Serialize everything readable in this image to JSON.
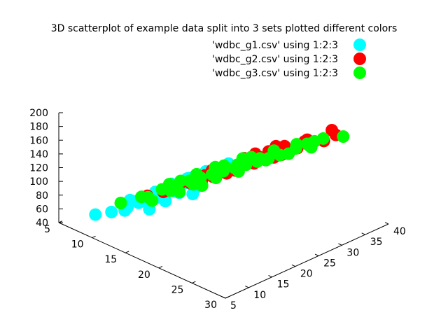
{
  "chart_data": {
    "type": "scatter",
    "title": "3D scatterplot of example data split into 3 sets plotted different colors",
    "xlabel": "",
    "ylabel": "",
    "zlabel": "",
    "xlim": [
      5,
      30
    ],
    "ylim": [
      5,
      40
    ],
    "zlim": [
      40,
      200
    ],
    "x_ticks": [
      "5",
      "10",
      "15",
      "20",
      "25",
      "30"
    ],
    "y_ticks": [
      "5",
      "10",
      "15",
      "20",
      "25",
      "30",
      "35",
      "40"
    ],
    "z_ticks": [
      "40",
      "60",
      "80",
      "100",
      "120",
      "140",
      "160",
      "180",
      "200"
    ],
    "legend_position": "top-right",
    "grid": false,
    "series": [
      {
        "name": "'wdbc_g1.csv' using 1:2:3",
        "color": "#00ffff",
        "points": [
          [
            7,
            10,
            45
          ],
          [
            8,
            12,
            47
          ],
          [
            9,
            14,
            52
          ],
          [
            9,
            16,
            55
          ],
          [
            10,
            15,
            60
          ],
          [
            10,
            18,
            62
          ],
          [
            11,
            15,
            66
          ],
          [
            11,
            20,
            68
          ],
          [
            12,
            14,
            72
          ],
          [
            12,
            17,
            74
          ],
          [
            13,
            13,
            70
          ],
          [
            13,
            19,
            78
          ],
          [
            14,
            15,
            80
          ],
          [
            14,
            18,
            83
          ],
          [
            12,
            22,
            76
          ],
          [
            11,
            24,
            72
          ],
          [
            10,
            22,
            66
          ],
          [
            13,
            24,
            80
          ],
          [
            15,
            20,
            88
          ],
          [
            8,
            16,
            52
          ],
          [
            9,
            20,
            56
          ],
          [
            10,
            12,
            58
          ],
          [
            12,
            25,
            74
          ],
          [
            14,
            26,
            86
          ],
          [
            11,
            28,
            70
          ],
          [
            13,
            30,
            84
          ],
          [
            10,
            26,
            62
          ],
          [
            9,
            23,
            55
          ],
          [
            12,
            20,
            70
          ],
          [
            14,
            21,
            85
          ],
          [
            16,
            18,
            90
          ],
          [
            15,
            24,
            92
          ],
          [
            11,
            17,
            64
          ],
          [
            13,
            16,
            76
          ],
          [
            10,
            19,
            60
          ]
        ]
      },
      {
        "name": "'wdbc_g2.csv' using 1:2:3",
        "color": "#ff0000",
        "points": [
          [
            13,
            16,
            86
          ],
          [
            14,
            17,
            92
          ],
          [
            15,
            19,
            98
          ],
          [
            16,
            20,
            104
          ],
          [
            17,
            21,
            110
          ],
          [
            18,
            22,
            118
          ],
          [
            19,
            21,
            124
          ],
          [
            20,
            22,
            130
          ],
          [
            21,
            24,
            138
          ],
          [
            22,
            26,
            146
          ],
          [
            23,
            27,
            150
          ],
          [
            24,
            29,
            158
          ],
          [
            25,
            30,
            164
          ],
          [
            20,
            25,
            132
          ],
          [
            18,
            26,
            120
          ],
          [
            17,
            24,
            112
          ],
          [
            16,
            25,
            106
          ],
          [
            19,
            28,
            126
          ],
          [
            21,
            30,
            142
          ],
          [
            23,
            32,
            154
          ],
          [
            27,
            33,
            178
          ],
          [
            28,
            29,
            186
          ],
          [
            22,
            34,
            146
          ],
          [
            19,
            30,
            128
          ],
          [
            15,
            22,
            100
          ],
          [
            14,
            25,
            94
          ],
          [
            17,
            30,
            116
          ],
          [
            20,
            32,
            134
          ],
          [
            24,
            24,
            160
          ],
          [
            25,
            35,
            170
          ],
          [
            18,
            33,
            122
          ],
          [
            16,
            29,
            108
          ],
          [
            21,
            20,
            140
          ],
          [
            13,
            20,
            88
          ],
          [
            12,
            14,
            82
          ]
        ]
      },
      {
        "name": "'wdbc_g3.csv' using 1:2:3",
        "color": "#00ff00",
        "points": [
          [
            8,
            14,
            54
          ],
          [
            9,
            17,
            58
          ],
          [
            10,
            20,
            64
          ],
          [
            11,
            21,
            70
          ],
          [
            12,
            23,
            76
          ],
          [
            13,
            24,
            82
          ],
          [
            14,
            25,
            88
          ],
          [
            15,
            26,
            94
          ],
          [
            16,
            27,
            100
          ],
          [
            17,
            28,
            106
          ],
          [
            18,
            29,
            112
          ],
          [
            19,
            30,
            118
          ],
          [
            20,
            31,
            124
          ],
          [
            21,
            33,
            132
          ],
          [
            22,
            34,
            140
          ],
          [
            23,
            36,
            146
          ],
          [
            10,
            17,
            62
          ],
          [
            12,
            19,
            74
          ],
          [
            14,
            21,
            86
          ],
          [
            16,
            23,
            98
          ],
          [
            18,
            25,
            110
          ],
          [
            11,
            26,
            72
          ],
          [
            13,
            29,
            84
          ],
          [
            15,
            32,
            96
          ],
          [
            17,
            34,
            108
          ],
          [
            19,
            36,
            120
          ],
          [
            9,
            23,
            58
          ],
          [
            11,
            30,
            70
          ],
          [
            13,
            33,
            82
          ],
          [
            20,
            28,
            126
          ],
          [
            22,
            30,
            138
          ],
          [
            24,
            32,
            150
          ],
          [
            26,
            36,
            162
          ],
          [
            12,
            15,
            72
          ],
          [
            14,
            18,
            84
          ],
          [
            16,
            20,
            96
          ],
          [
            10,
            24,
            64
          ],
          [
            15,
            29,
            94
          ],
          [
            17,
            31,
            106
          ],
          [
            21,
            37,
            130
          ]
        ]
      }
    ]
  }
}
